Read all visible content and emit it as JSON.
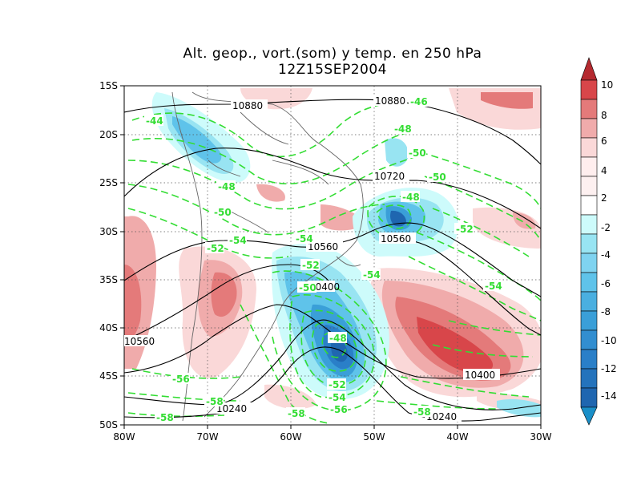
{
  "title": "Alt. geop., vort.(som) y temp. en 250 hPa",
  "subtitle": "12Z15SEP2004",
  "map": {
    "lon_ticks": [
      "80W",
      "70W",
      "60W",
      "50W",
      "40W",
      "30W"
    ],
    "lat_ticks": [
      "15S",
      "20S",
      "25S",
      "30S",
      "35S",
      "40S",
      "45S",
      "50S"
    ],
    "geopotential_labels": [
      "10880",
      "10880",
      "10720",
      "10560",
      "10560",
      "10560",
      "10400",
      "10400",
      "10240",
      "10240"
    ],
    "temperature_labels": [
      "-44",
      "-46",
      "-48",
      "-50",
      "-48",
      "-48",
      "-50",
      "-50",
      "-54",
      "-52",
      "-52",
      "-52",
      "-54",
      "-54",
      "-54",
      "-48",
      "-50",
      "-52",
      "-54",
      "-56",
      "-58",
      "-58",
      "-58",
      "-58",
      "-56"
    ]
  },
  "colorbar": {
    "labels": [
      "10",
      "8",
      "6",
      "4",
      "2",
      "-2",
      "-4",
      "-6",
      "-8",
      "-10",
      "-12",
      "-14"
    ],
    "colors": [
      "#b52a30",
      "#d8464a",
      "#e47a7a",
      "#f0abab",
      "#fad8d8",
      "#ffeeee",
      "#ffffff",
      "#cdfbfb",
      "#98e4f2",
      "#5fc3ea",
      "#3a9fd8",
      "#2a7fc8",
      "#1f66b0",
      "#1a5aa0"
    ]
  },
  "colors": {
    "temperature_contour": "#33dd33",
    "geopotential_contour": "#000000",
    "coastline": "#666666"
  }
}
